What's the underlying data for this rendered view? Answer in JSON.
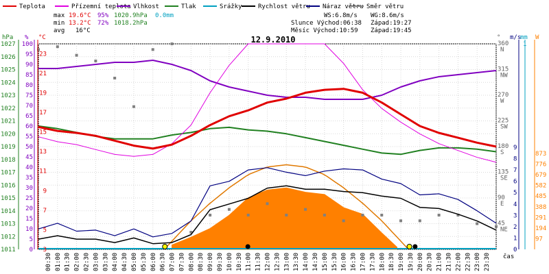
{
  "chart_data": {
    "type": "line",
    "title": "12.9.2010",
    "legend": [
      {
        "name": "Teplota",
        "color": "#e00000"
      },
      {
        "name": "Přízemní teplota",
        "color": "#e000e0"
      },
      {
        "name": "Vlhkost",
        "color": "#8000c0"
      },
      {
        "name": "Tlak",
        "color": "#208020"
      },
      {
        "name": "Srážky",
        "color": "#00a0c0"
      },
      {
        "name": "Rychlost větru",
        "color": "#000000"
      },
      {
        "name": "Náraz větru",
        "color": "#000080"
      },
      {
        "name": "Směr větru",
        "color": "#808080"
      }
    ],
    "stats": {
      "max_label": "max",
      "min_label": "min",
      "avg_label": "avg",
      "max": {
        "temp": "19.6°C",
        "hum": "95%",
        "press": "1020.9hPa",
        "rain": "0.0mm"
      },
      "min": {
        "temp": "13.2°C",
        "hum": "72%",
        "press": "1018.2hPa"
      },
      "avg": {
        "temp": "16°C"
      }
    },
    "info": {
      "ws": "WS:6.8m/s",
      "wg": "WG:8.6m/s",
      "sun_rise": "Slunce Východ:06:38",
      "sun_set": "Západ:19:27",
      "moon_rise": "Měsíc Východ:10:59",
      "moon_set": "Západ:19:45"
    },
    "axes": {
      "hpa": {
        "label": "hPa",
        "ticks": [
          "1027",
          "1026",
          "1025",
          "1024",
          "1023",
          "1022",
          "1021",
          "1020",
          "1019",
          "1018",
          "1017",
          "1016",
          "1015",
          "1014",
          "1013",
          "1012",
          "1011"
        ],
        "range": [
          1011,
          1027
        ]
      },
      "pct": {
        "label": "%",
        "ticks": [
          "100",
          "95",
          "90",
          "85",
          "80",
          "75",
          "70",
          "65",
          "60",
          "55",
          "50",
          "45",
          "40",
          "35",
          "30",
          "25",
          "20",
          "15",
          "10",
          "5",
          "0"
        ],
        "range": [
          0,
          100
        ]
      },
      "degc": {
        "label": "°C",
        "ticks": [
          "23",
          "21",
          "19",
          "17",
          "15",
          "13",
          "11",
          "9",
          "7",
          "5",
          "3"
        ],
        "range": [
          3,
          24
        ]
      },
      "dir": {
        "label": "°",
        "ticks": [
          "360",
          "315",
          "270",
          "225",
          "180",
          "135",
          "90",
          "45"
        ],
        "names": [
          "N",
          "NW",
          "W",
          "SW",
          "S",
          "SE",
          "E",
          "NE"
        ],
        "range": [
          0,
          360
        ]
      },
      "ms": {
        "label": "m/s",
        "ticks": [
          "9",
          "8",
          "7",
          "6",
          "5",
          "4",
          "3",
          "2",
          "1",
          "0"
        ],
        "range": [
          0,
          9
        ]
      },
      "mm": {
        "label": "mm",
        "tick": "1"
      },
      "wm2": {
        "label": "W",
        "ticks": [
          "873",
          "776",
          "679",
          "582",
          "485",
          "388",
          "291",
          "194",
          "97"
        ],
        "range": [
          0,
          873
        ]
      },
      "time": {
        "label": "čas",
        "ticks": [
          "00:30",
          "01:00",
          "01:30",
          "02:00",
          "02:30",
          "03:00",
          "03:30",
          "04:00",
          "04:30",
          "05:00",
          "05:30",
          "06:00",
          "06:30",
          "07:00",
          "07:30",
          "08:00",
          "08:30",
          "09:00",
          "09:30",
          "10:00",
          "10:30",
          "11:00",
          "11:30",
          "12:00",
          "12:30",
          "13:00",
          "13:30",
          "14:00",
          "14:30",
          "15:00",
          "15:30",
          "16:00",
          "16:30",
          "17:00",
          "17:30",
          "18:00",
          "18:30",
          "19:00",
          "19:30",
          "20:00",
          "20:30",
          "21:00",
          "21:30",
          "22:00",
          "22:30",
          "23:00",
          "23:30"
        ]
      }
    },
    "series": {
      "temperature_c": {
        "name": "Teplota",
        "x": [
          0,
          1,
          2,
          3,
          4,
          5,
          6,
          7,
          8,
          9,
          10,
          11,
          12,
          13,
          14,
          15,
          16,
          17,
          18,
          19,
          20,
          21,
          22,
          23,
          24
        ],
        "values": [
          15.5,
          15.1,
          14.9,
          14.6,
          14.1,
          13.6,
          13.3,
          13.7,
          14.6,
          15.7,
          16.6,
          17.2,
          18.0,
          18.4,
          19.0,
          19.3,
          19.4,
          19.0,
          18.0,
          16.8,
          15.6,
          14.9,
          14.4,
          13.9,
          13.5
        ]
      },
      "ground_temp_c": {
        "name": "Přízemní teplota",
        "x": [
          0,
          1,
          2,
          3,
          4,
          5,
          6,
          7,
          8,
          9,
          10,
          11,
          12,
          13,
          14,
          15,
          16,
          17,
          18,
          19,
          20,
          21,
          22,
          23,
          24
        ],
        "values": [
          14.5,
          14.0,
          13.7,
          13.2,
          12.7,
          12.5,
          12.7,
          13.8,
          15.7,
          19.0,
          21.8,
          24.0,
          24.0,
          24.0,
          24.0,
          24.0,
          22.0,
          19.3,
          17.4,
          16.0,
          14.8,
          13.8,
          13.1,
          12.4,
          11.9
        ]
      },
      "humidity_pct": {
        "name": "Vlhkost",
        "x": [
          0,
          1,
          2,
          3,
          4,
          5,
          6,
          7,
          8,
          9,
          10,
          11,
          12,
          13,
          14,
          15,
          16,
          17,
          18,
          19,
          20,
          21,
          22,
          23,
          24
        ],
        "values": [
          88,
          88,
          89,
          90,
          91,
          91,
          92,
          90,
          87,
          82,
          79,
          77,
          75,
          74,
          74,
          73,
          73,
          73,
          75,
          79,
          82,
          84,
          85,
          86,
          87
        ]
      },
      "pressure_hpa": {
        "name": "Tlak",
        "x": [
          0,
          1,
          2,
          3,
          4,
          5,
          6,
          7,
          8,
          9,
          10,
          11,
          12,
          13,
          14,
          15,
          16,
          17,
          18,
          19,
          20,
          21,
          22,
          23,
          24
        ],
        "values": [
          1020.6,
          1020.4,
          1020.1,
          1019.8,
          1019.6,
          1019.6,
          1019.6,
          1019.9,
          1020.1,
          1020.4,
          1020.5,
          1020.3,
          1020.2,
          1020.0,
          1019.7,
          1019.4,
          1019.1,
          1018.8,
          1018.5,
          1018.4,
          1018.7,
          1018.9,
          1018.9,
          1018.8,
          1018.6
        ]
      },
      "wind_speed_ms": {
        "name": "Rychlost větru",
        "x": [
          0,
          1,
          2,
          3,
          4,
          5,
          6,
          7,
          8,
          9,
          10,
          11,
          12,
          13,
          14,
          15,
          16,
          17,
          18,
          19,
          20,
          21,
          22,
          23,
          24
        ],
        "values": [
          0.9,
          1.2,
          0.9,
          0.9,
          0.6,
          1.0,
          0.5,
          0.6,
          1.3,
          3.5,
          4.0,
          4.5,
          5.4,
          5.6,
          5.3,
          5.3,
          5.1,
          5.0,
          4.7,
          4.5,
          3.7,
          3.6,
          3.1,
          2.5,
          1.7
        ]
      },
      "wind_gust_ms": {
        "name": "Náraz větru",
        "x": [
          0,
          1,
          2,
          3,
          4,
          5,
          6,
          7,
          8,
          9,
          10,
          11,
          12,
          13,
          14,
          15,
          16,
          17,
          18,
          19,
          20,
          21,
          22,
          23,
          24
        ],
        "values": [
          1.8,
          2.3,
          1.6,
          1.7,
          1.2,
          1.8,
          1.1,
          1.4,
          2.5,
          5.6,
          6.0,
          7.0,
          7.2,
          6.8,
          6.5,
          6.9,
          7.1,
          7.0,
          6.2,
          5.8,
          4.8,
          4.9,
          4.4,
          3.4,
          2.3
        ]
      },
      "wind_dir_deg": {
        "name": "Směr větru",
        "x": [
          0,
          1,
          2,
          3,
          4,
          5,
          6,
          7,
          8,
          9,
          10,
          11,
          12,
          13,
          14,
          15,
          16,
          17,
          18,
          19,
          20,
          21,
          22,
          23,
          24
        ],
        "values": [
          350,
          355,
          340,
          330,
          300,
          250,
          350,
          360,
          30,
          60,
          70,
          60,
          80,
          60,
          70,
          60,
          50,
          60,
          60,
          50,
          50,
          60,
          60,
          45,
          40
        ]
      },
      "solar_wm2": {
        "name": "W",
        "x": [
          7,
          8,
          9,
          10,
          11,
          12,
          13,
          14,
          15,
          16,
          17,
          18,
          18.8
        ],
        "values": [
          40,
          110,
          190,
          310,
          470,
          540,
          560,
          520,
          500,
          380,
          320,
          150,
          20
        ]
      },
      "clear_sky_wm2": {
        "name": "W",
        "x": [
          6.6,
          8,
          9,
          10,
          11,
          12,
          13,
          14,
          15,
          16,
          17,
          18,
          19.4
        ],
        "values": [
          0,
          260,
          420,
          560,
          680,
          750,
          770,
          750,
          680,
          560,
          420,
          260,
          0
        ]
      }
    },
    "markers": {
      "sunrise_h": 6.63,
      "sunset_h": 19.45,
      "moonrise_h": 10.98,
      "moonset_h": 19.75
    }
  }
}
